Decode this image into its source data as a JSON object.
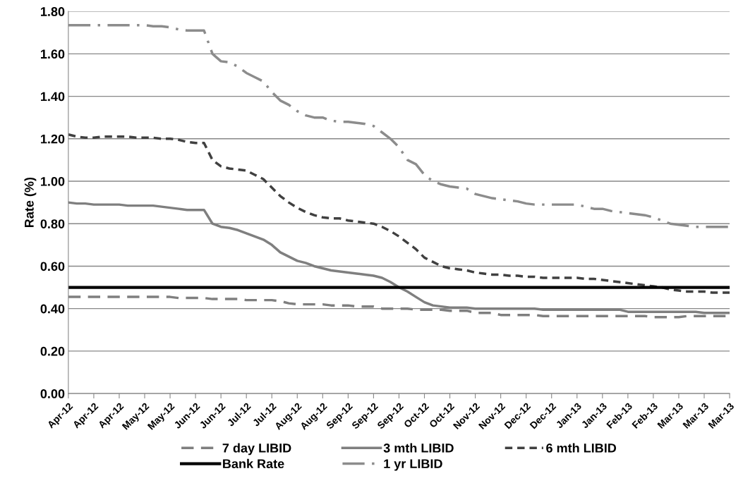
{
  "chart_data": {
    "type": "line",
    "ylabel": "Rate (%)",
    "categories": [
      "Apr-12",
      null,
      null,
      "Apr-12",
      null,
      null,
      "Apr-12",
      null,
      null,
      "May-12",
      null,
      null,
      "May-12",
      null,
      null,
      "Jun-12",
      null,
      null,
      "Jun-12",
      null,
      null,
      "Jul-12",
      null,
      null,
      "Jul-12",
      null,
      null,
      "Aug-12",
      null,
      null,
      "Aug-12",
      null,
      null,
      "Sep-12",
      null,
      null,
      "Sep-12",
      null,
      null,
      "Sep-12",
      null,
      null,
      "Oct-12",
      null,
      null,
      "Oct-12",
      null,
      null,
      "Nov-12",
      null,
      null,
      "Nov-12",
      null,
      null,
      "Dec-12",
      null,
      null,
      "Dec-12",
      null,
      null,
      "Jan-13",
      null,
      null,
      "Jan-13",
      null,
      null,
      "Feb-13",
      null,
      null,
      "Feb-13",
      null,
      null,
      "Mar-13",
      null,
      null,
      "Mar-13",
      null,
      null,
      "Mar-13"
    ],
    "series": [
      {
        "name": "7 day LIBID",
        "color": "#7f7f7f",
        "line_style": "dashed",
        "values": [
          0.455,
          0.455,
          0.455,
          0.455,
          0.455,
          0.455,
          0.455,
          0.455,
          0.455,
          0.455,
          0.455,
          0.455,
          0.455,
          0.45,
          0.45,
          0.45,
          0.45,
          0.445,
          0.445,
          0.445,
          0.445,
          0.44,
          0.44,
          0.44,
          0.44,
          0.435,
          0.425,
          0.42,
          0.42,
          0.42,
          0.42,
          0.415,
          0.415,
          0.415,
          0.41,
          0.41,
          0.41,
          0.4,
          0.4,
          0.4,
          0.4,
          0.395,
          0.395,
          0.395,
          0.395,
          0.39,
          0.39,
          0.39,
          0.38,
          0.38,
          0.38,
          0.37,
          0.37,
          0.37,
          0.37,
          0.37,
          0.365,
          0.365,
          0.365,
          0.365,
          0.365,
          0.365,
          0.365,
          0.365,
          0.365,
          0.365,
          0.365,
          0.365,
          0.365,
          0.36,
          0.36,
          0.36,
          0.36,
          0.365,
          0.365,
          0.365,
          0.365,
          0.365,
          0.365
        ]
      },
      {
        "name": "3 mth LIBID",
        "color": "#7f7f7f",
        "line_style": "solid",
        "values": [
          0.9,
          0.895,
          0.895,
          0.89,
          0.89,
          0.89,
          0.89,
          0.885,
          0.885,
          0.885,
          0.885,
          0.88,
          0.875,
          0.87,
          0.865,
          0.865,
          0.865,
          0.8,
          0.785,
          0.78,
          0.77,
          0.755,
          0.74,
          0.725,
          0.7,
          0.665,
          0.645,
          0.625,
          0.615,
          0.6,
          0.59,
          0.58,
          0.575,
          0.57,
          0.565,
          0.56,
          0.555,
          0.545,
          0.525,
          0.5,
          0.48,
          0.455,
          0.43,
          0.415,
          0.41,
          0.405,
          0.405,
          0.405,
          0.4,
          0.4,
          0.4,
          0.4,
          0.4,
          0.4,
          0.4,
          0.4,
          0.395,
          0.395,
          0.395,
          0.395,
          0.395,
          0.395,
          0.395,
          0.395,
          0.395,
          0.395,
          0.385,
          0.385,
          0.385,
          0.385,
          0.385,
          0.385,
          0.385,
          0.385,
          0.385,
          0.38,
          0.38,
          0.38,
          0.38
        ]
      },
      {
        "name": "6 mth LIBID",
        "color": "#404040",
        "line_style": "dotted",
        "values": [
          1.22,
          1.21,
          1.205,
          1.205,
          1.21,
          1.21,
          1.21,
          1.21,
          1.205,
          1.205,
          1.205,
          1.2,
          1.2,
          1.195,
          1.185,
          1.18,
          1.18,
          1.1,
          1.07,
          1.06,
          1.055,
          1.05,
          1.03,
          1.01,
          0.97,
          0.93,
          0.9,
          0.875,
          0.855,
          0.84,
          0.83,
          0.825,
          0.825,
          0.815,
          0.81,
          0.805,
          0.8,
          0.785,
          0.765,
          0.74,
          0.71,
          0.68,
          0.64,
          0.62,
          0.6,
          0.59,
          0.585,
          0.58,
          0.57,
          0.565,
          0.56,
          0.56,
          0.555,
          0.555,
          0.55,
          0.55,
          0.545,
          0.545,
          0.545,
          0.545,
          0.545,
          0.54,
          0.54,
          0.535,
          0.53,
          0.525,
          0.52,
          0.515,
          0.51,
          0.505,
          0.5,
          0.49,
          0.485,
          0.48,
          0.48,
          0.48,
          0.475,
          0.475,
          0.475
        ]
      },
      {
        "name": "Bank Rate",
        "color": "#000000",
        "line_style": "solid",
        "values": [
          0.5,
          0.5,
          0.5,
          0.5,
          0.5,
          0.5,
          0.5,
          0.5,
          0.5,
          0.5,
          0.5,
          0.5,
          0.5,
          0.5,
          0.5,
          0.5,
          0.5,
          0.5,
          0.5,
          0.5,
          0.5,
          0.5,
          0.5,
          0.5,
          0.5,
          0.5,
          0.5,
          0.5,
          0.5,
          0.5,
          0.5,
          0.5,
          0.5,
          0.5,
          0.5,
          0.5,
          0.5,
          0.5,
          0.5,
          0.5,
          0.5,
          0.5,
          0.5,
          0.5,
          0.5,
          0.5,
          0.5,
          0.5,
          0.5,
          0.5,
          0.5,
          0.5,
          0.5,
          0.5,
          0.5,
          0.5,
          0.5,
          0.5,
          0.5,
          0.5,
          0.5,
          0.5,
          0.5,
          0.5,
          0.5,
          0.5,
          0.5,
          0.5,
          0.5,
          0.5,
          0.5,
          0.5,
          0.5,
          0.5,
          0.5,
          0.5,
          0.5,
          0.5,
          0.5
        ]
      },
      {
        "name": "1 yr LIBID",
        "color": "#8c8c8c",
        "line_style": "dashdot",
        "values": [
          1.735,
          1.735,
          1.735,
          1.735,
          1.735,
          1.735,
          1.735,
          1.735,
          1.735,
          1.735,
          1.73,
          1.73,
          1.725,
          1.715,
          1.71,
          1.71,
          1.71,
          1.6,
          1.565,
          1.56,
          1.54,
          1.51,
          1.49,
          1.47,
          1.42,
          1.38,
          1.36,
          1.33,
          1.31,
          1.3,
          1.3,
          1.285,
          1.28,
          1.28,
          1.275,
          1.27,
          1.26,
          1.23,
          1.2,
          1.16,
          1.1,
          1.08,
          1.03,
          1.0,
          0.985,
          0.975,
          0.97,
          0.965,
          0.94,
          0.93,
          0.92,
          0.915,
          0.91,
          0.905,
          0.895,
          0.89,
          0.89,
          0.89,
          0.89,
          0.89,
          0.89,
          0.88,
          0.87,
          0.87,
          0.86,
          0.855,
          0.85,
          0.845,
          0.84,
          0.83,
          0.815,
          0.8,
          0.795,
          0.79,
          0.785,
          0.785,
          0.785,
          0.785,
          0.785
        ]
      }
    ],
    "ylim": [
      0,
      1.8
    ],
    "yticks": [
      {
        "value": 0,
        "label": "0.00"
      },
      {
        "value": 0.2,
        "label": "0.20"
      },
      {
        "value": 0.4,
        "label": "0.40"
      },
      {
        "value": 0.6,
        "label": "0.60"
      },
      {
        "value": 0.8,
        "label": "0.80"
      },
      {
        "value": 1.0,
        "label": "1.00"
      },
      {
        "value": 1.2,
        "label": "1.20"
      },
      {
        "value": 1.4,
        "label": "1.40"
      },
      {
        "value": 1.6,
        "label": "1.60"
      },
      {
        "value": 1.8,
        "label": "1.80"
      }
    ],
    "grid": "y",
    "legend": "bottom"
  }
}
